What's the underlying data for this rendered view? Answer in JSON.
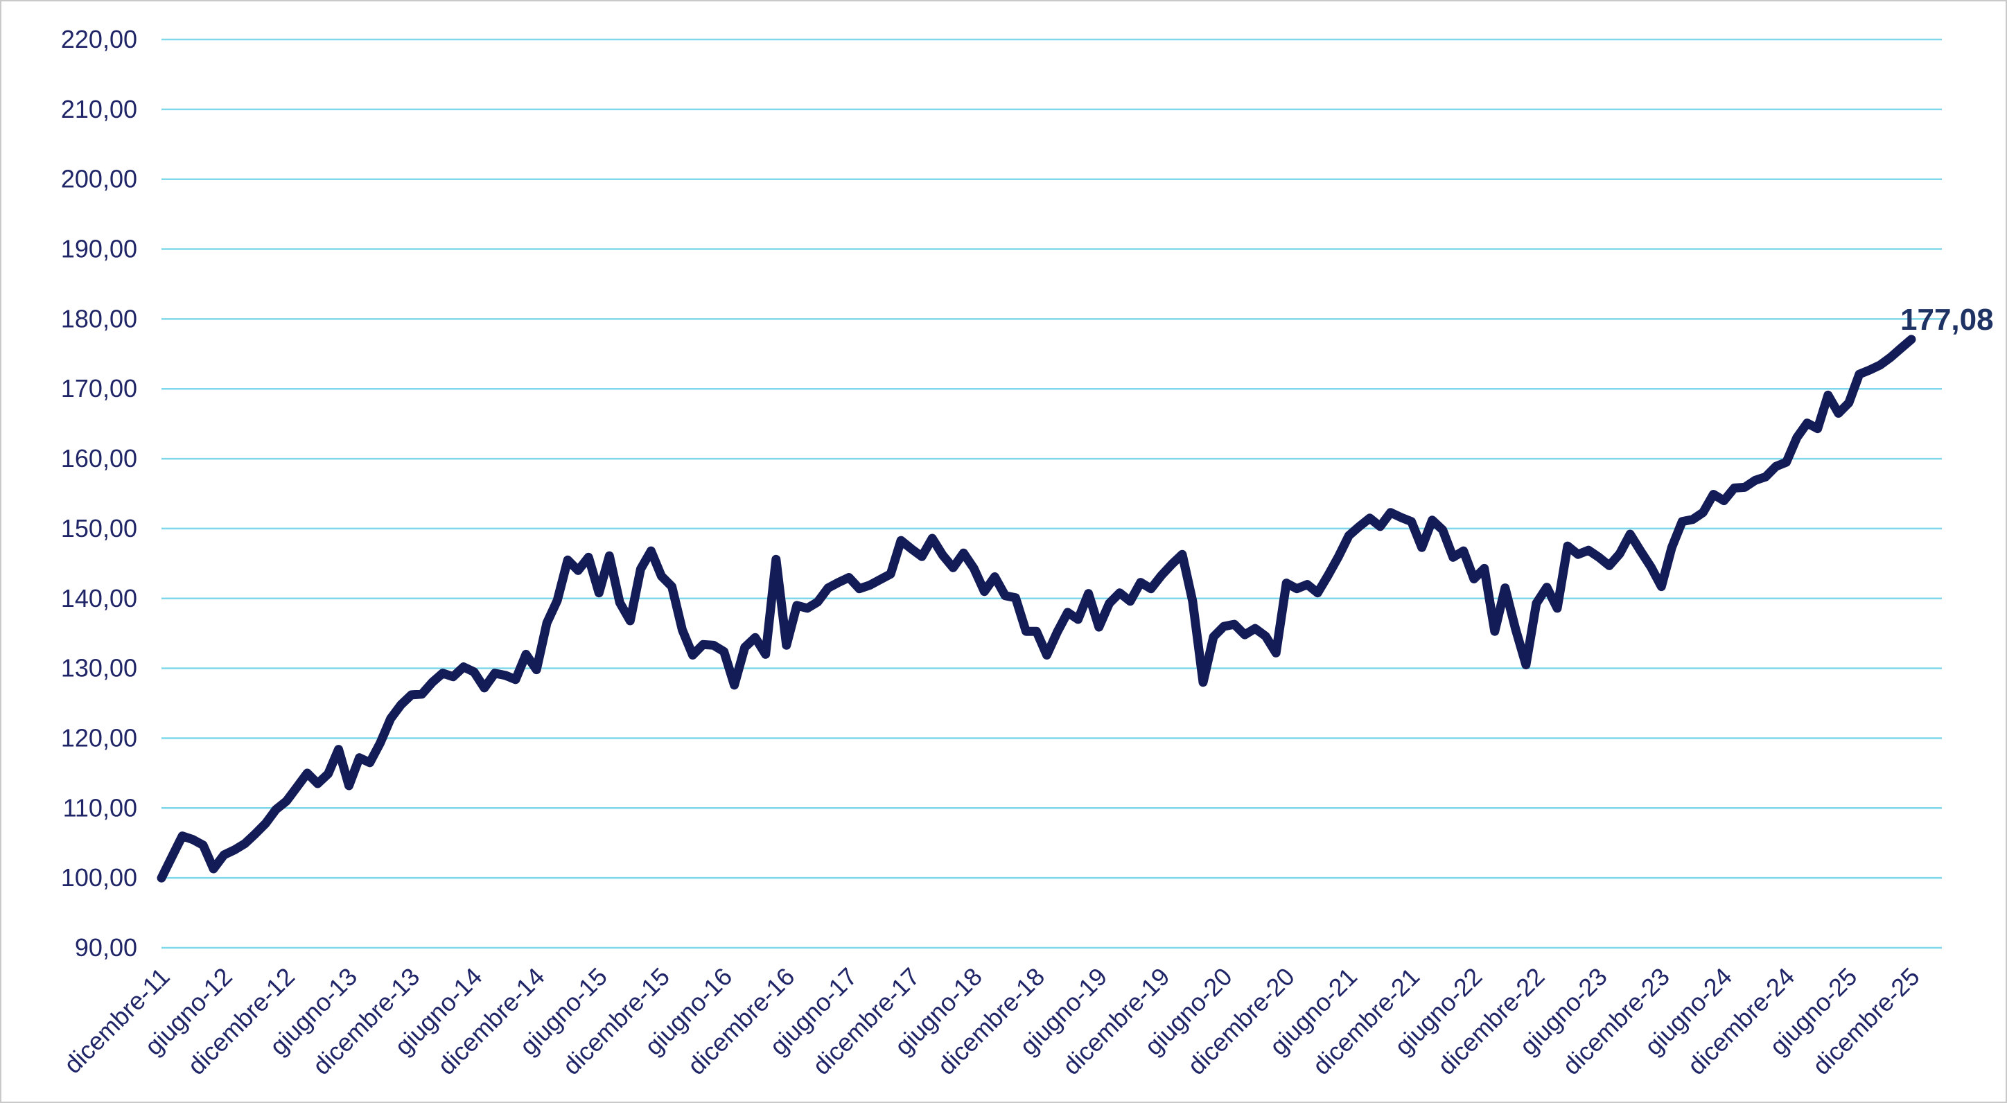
{
  "chart_data": {
    "type": "line",
    "title": "",
    "x_frequency": "monthly",
    "x_range": [
      "dicembre-11",
      "dicembre-25"
    ],
    "x_tick_labels": [
      "dicembre-11",
      "giugno-12",
      "dicembre-12",
      "giugno-13",
      "dicembre-13",
      "giugno-14",
      "dicembre-14",
      "giugno-15",
      "dicembre-15",
      "giugno-16",
      "dicembre-16",
      "giugno-17",
      "dicembre-17",
      "giugno-18",
      "dicembre-18",
      "giugno-19",
      "dicembre-19",
      "giugno-20",
      "dicembre-20",
      "giugno-21",
      "dicembre-21",
      "giugno-22",
      "dicembre-22",
      "giugno-23",
      "dicembre-23",
      "giugno-24",
      "dicembre-24",
      "giugno-25",
      "dicembre-25"
    ],
    "y_ticks": [
      220,
      210,
      200,
      190,
      180,
      170,
      160,
      150,
      140,
      130,
      120,
      110,
      100,
      90
    ],
    "y_tick_labels": [
      "220,00",
      "210,00",
      "200,00",
      "190,00",
      "180,00",
      "170,00",
      "160,00",
      "150,00",
      "140,00",
      "130,00",
      "120,00",
      "110,00",
      "100,00",
      "90,00"
    ],
    "ylim": [
      90,
      220
    ],
    "grid": "horizontal",
    "legend": "none",
    "end_label": "177,08",
    "end_value": 177.08,
    "series": [
      {
        "name": "",
        "values": [
          100.0,
          103.0,
          106.0,
          105.5,
          104.7,
          101.3,
          103.3,
          104.0,
          104.9,
          106.3,
          107.8,
          109.8,
          111.0,
          113.0,
          115.0,
          113.5,
          114.9,
          118.4,
          113.2,
          117.2,
          116.5,
          119.3,
          122.8,
          124.8,
          126.2,
          126.3,
          128.0,
          129.3,
          128.8,
          130.2,
          129.5,
          127.2,
          129.3,
          129.0,
          128.4,
          132.0,
          129.8,
          136.5,
          139.7,
          145.5,
          144.0,
          145.9,
          140.8,
          146.1,
          139.4,
          136.8,
          144.2,
          146.8,
          143.2,
          141.7,
          135.5,
          131.9,
          133.4,
          133.3,
          132.4,
          127.6,
          133.0,
          134.4,
          132.0,
          145.6,
          133.3,
          139.0,
          138.6,
          139.5,
          141.5,
          142.3,
          143.0,
          141.4,
          141.9,
          142.7,
          143.5,
          148.3,
          147.1,
          146.0,
          148.6,
          146.2,
          144.4,
          146.5,
          144.3,
          141.0,
          143.1,
          140.4,
          140.1,
          135.3,
          135.3,
          131.9,
          135.2,
          138.0,
          137.0,
          140.7,
          135.9,
          139.3,
          140.8,
          139.6,
          142.3,
          141.4,
          143.3,
          144.9,
          146.3,
          139.6,
          128.0,
          134.5,
          136.0,
          136.3,
          134.8,
          135.7,
          134.6,
          132.2,
          142.2,
          141.4,
          142.0,
          140.8,
          143.3,
          146.0,
          149.0,
          150.3,
          151.5,
          150.3,
          152.3,
          151.6,
          151.0,
          147.3,
          151.2,
          149.8,
          145.9,
          146.8,
          142.8,
          144.3,
          135.3,
          141.5,
          135.6,
          130.5,
          139.3,
          141.6,
          138.6,
          147.5,
          146.3,
          146.9,
          145.9,
          144.7,
          146.4,
          149.2,
          146.8,
          144.5,
          141.7,
          147.3,
          151.0,
          151.3,
          152.3,
          154.9,
          154.0,
          155.8,
          155.9,
          156.9,
          157.4,
          158.9,
          159.5,
          163.0,
          165.1,
          164.3,
          169.1,
          166.5,
          168.0,
          172.1,
          172.7,
          173.4,
          174.5,
          175.8,
          177.08
        ]
      }
    ],
    "colors": {
      "line": "#141c58",
      "gridline": "#7ed7ea",
      "text": "#1f2566",
      "end_label_text": "#1f3264",
      "frame_border": "#c9c9c9",
      "background": "#ffffff"
    }
  }
}
